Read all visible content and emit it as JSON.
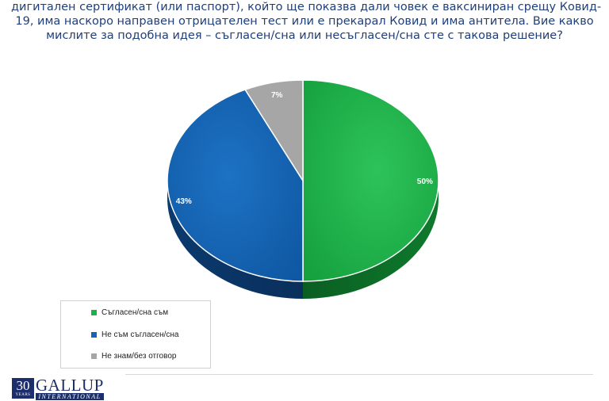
{
  "header": {
    "lines": [
      "дигитален сертификат (или паспорт), който ще показва дали човек е ваксиниран срещу Ковид-",
      "19, има наскоро направен отрицателен тест или е прекарал Ковид и има антитела. Вие какво",
      "мислите за подобна идея – съгласен/сна или несъгласен/сна сте с такова решение?"
    ]
  },
  "chart_data": {
    "type": "pie",
    "style": "3d",
    "title": "",
    "slices": [
      {
        "label": "Съгласен/сна съм",
        "value": 50,
        "display": "50%",
        "color": "#1fb24a"
      },
      {
        "label": "Не съм съгласен/сна",
        "value": 43,
        "display": "43%",
        "color": "#1564b3"
      },
      {
        "label": "Не знам/без отговор",
        "value": 7,
        "display": "7%",
        "color": "#a6a6a6"
      }
    ],
    "legend_position": "bottom-left",
    "data_labels": true
  },
  "branding": {
    "years_number": "30",
    "years_label": "YEARS",
    "company": "GALLUP",
    "company_sub": "INTERNATIONAL"
  }
}
